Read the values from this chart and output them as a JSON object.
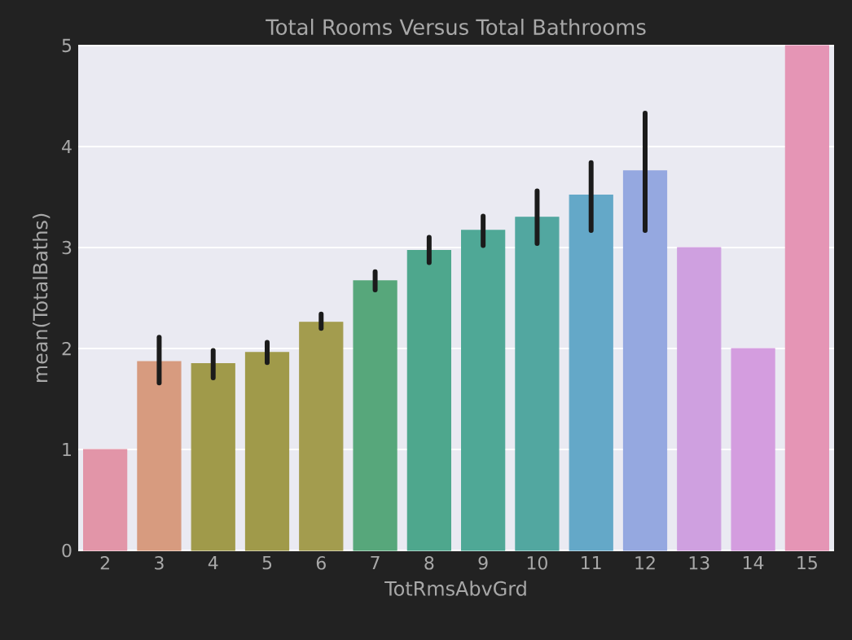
{
  "chart_data": {
    "type": "bar",
    "title": "Total Rooms Versus Total Bathrooms",
    "xlabel": "TotRmsAbvGrd",
    "ylabel": "mean(TotalBaths)",
    "categories": [
      "2",
      "3",
      "4",
      "5",
      "6",
      "7",
      "8",
      "9",
      "10",
      "11",
      "12",
      "13",
      "14",
      "15"
    ],
    "values": [
      1.0,
      1.87,
      1.85,
      1.96,
      2.26,
      2.67,
      2.97,
      3.17,
      3.3,
      3.52,
      3.76,
      3.0,
      2.0,
      5.0
    ],
    "errors": [
      null,
      [
        1.66,
        2.11
      ],
      [
        1.71,
        1.98
      ],
      [
        1.86,
        2.06
      ],
      [
        2.2,
        2.34
      ],
      [
        2.58,
        2.76
      ],
      [
        2.85,
        3.1
      ],
      [
        3.02,
        3.31
      ],
      [
        3.04,
        3.56
      ],
      [
        3.17,
        3.84
      ],
      [
        3.17,
        4.33
      ],
      null,
      null,
      null
    ],
    "colors": [
      "#e295a8",
      "#d79b7f",
      "#a09a4a",
      "#a09a4a",
      "#a39c4e",
      "#57a77b",
      "#4ea78d",
      "#4fa896",
      "#52a7a0",
      "#64a8c8",
      "#95a8e0",
      "#cfa0e0",
      "#d49ddf",
      "#e595b5"
    ],
    "ylim": [
      0,
      5
    ],
    "yticks": [
      0,
      1,
      2,
      3,
      4,
      5
    ],
    "grid": "y"
  }
}
